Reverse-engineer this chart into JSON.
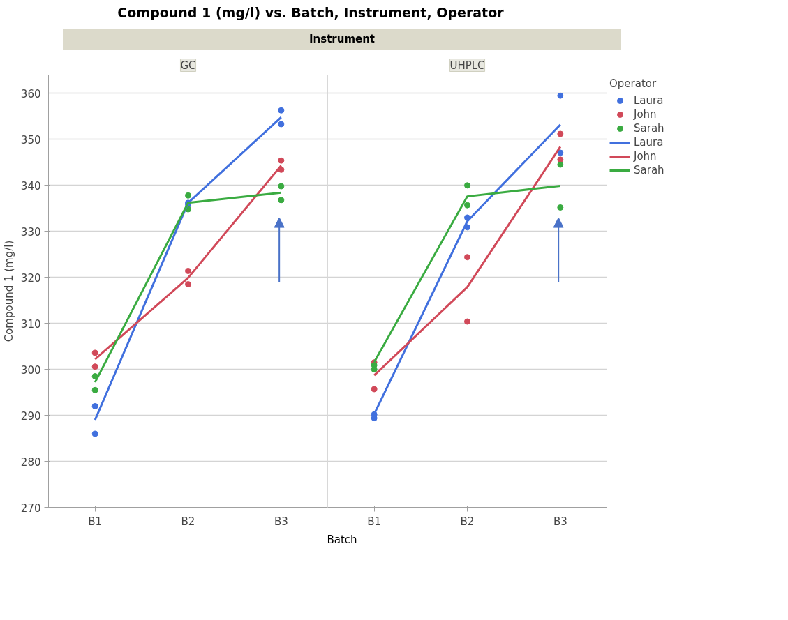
{
  "chart_data": [
    {
      "type": "scatter",
      "title": "GC",
      "xlabel": "Batch",
      "ylabel": "Compound 1 (mg/l)",
      "annotations": [
        "Compound 1 (mg/l) vs. Batch, Instrument, Operator",
        "Instrument"
      ],
      "categories": [
        "B1",
        "B2",
        "B3"
      ],
      "ylim": [
        270,
        364
      ],
      "yticks": [
        270,
        280,
        290,
        300,
        310,
        320,
        330,
        340,
        350,
        360
      ],
      "grid": "y",
      "marker": "circle",
      "legend": false,
      "series": [
        {
          "color": "#4170de",
          "x": [
            "B1",
            "B1",
            "B2",
            "B2",
            "B3",
            "B3"
          ],
          "values": [
            292.0,
            286.0,
            336.2,
            335.8,
            356.3,
            353.3
          ]
        },
        {
          "color": "#d14959",
          "x": [
            "B1",
            "B1",
            "B2",
            "B2",
            "B3",
            "B3"
          ],
          "values": [
            303.6,
            300.6,
            321.4,
            318.5,
            345.4,
            343.4
          ]
        },
        {
          "color": "#3aab41",
          "x": [
            "B1",
            "B1",
            "B2",
            "B2",
            "B3",
            "B3"
          ],
          "values": [
            298.5,
            295.5,
            337.8,
            334.8,
            339.8,
            336.8
          ]
        },
        {
          "type": "line",
          "marker": "none",
          "color": "#4170de",
          "values": [
            289.0,
            336.2,
            354.8
          ]
        },
        {
          "type": "line",
          "marker": "none",
          "color": "#d14959",
          "values": [
            302.2,
            319.9,
            344.3
          ]
        },
        {
          "type": "line",
          "marker": "none",
          "color": "#3aab41",
          "values": [
            297.2,
            336.2,
            338.4
          ]
        }
      ]
    },
    {
      "type": "scatter",
      "title": "UHPLC",
      "legend_title": "Operator",
      "categories": [
        "B1",
        "B2",
        "B3"
      ],
      "ylim": [
        270,
        364
      ],
      "yticks": [
        270,
        280,
        290,
        300,
        310,
        320,
        330,
        340,
        350,
        360
      ],
      "grid": "y",
      "marker": "circle",
      "legend": "right",
      "tick_labels": "x",
      "series": [
        {
          "name": "Laura",
          "color": "#4170de",
          "x": [
            "B1",
            "B1",
            "B2",
            "B2",
            "B3",
            "B3"
          ],
          "values": [
            290.2,
            289.4,
            333.0,
            330.9,
            359.5,
            347.1
          ]
        },
        {
          "name": "John",
          "color": "#d14959",
          "x": [
            "B1",
            "B1",
            "B2",
            "B2",
            "B3",
            "B3"
          ],
          "values": [
            301.5,
            295.7,
            324.4,
            310.4,
            351.2,
            345.6
          ]
        },
        {
          "name": "Sarah",
          "color": "#3aab41",
          "x": [
            "B1",
            "B1",
            "B2",
            "B2",
            "B3",
            "B3"
          ],
          "values": [
            300.9,
            300.0,
            340.0,
            335.7,
            344.5,
            335.2
          ]
        },
        {
          "name": "Laura",
          "type": "line",
          "marker": "none",
          "color": "#4170de",
          "values": [
            290.3,
            332.2,
            353.2
          ]
        },
        {
          "name": "John",
          "type": "line",
          "marker": "none",
          "color": "#d14959",
          "values": [
            298.7,
            317.9,
            348.4
          ]
        },
        {
          "name": "Sarah",
          "type": "line",
          "marker": "none",
          "color": "#3aab41",
          "values": [
            301.6,
            337.6,
            339.9
          ]
        }
      ]
    }
  ]
}
